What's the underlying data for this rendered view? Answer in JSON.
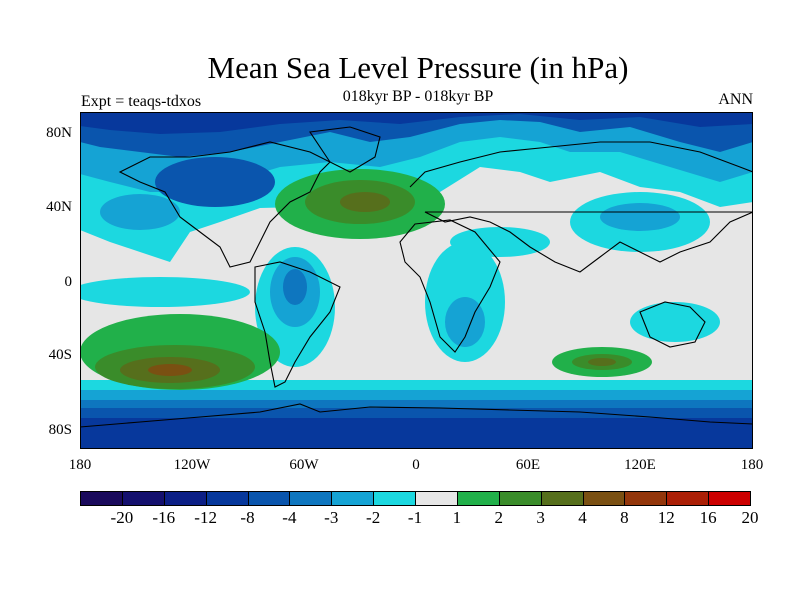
{
  "title": "Mean Sea Level Pressure (in hPa)",
  "subtitle": "018kyr BP - 018kyr BP",
  "expt_label": "Expt = teaqs-tdxos",
  "season": "ANN",
  "y_ticks": [
    "80N",
    "40N",
    "0",
    "40S",
    "80S"
  ],
  "x_ticks": [
    "180",
    "120W",
    "60W",
    "0",
    "60E",
    "120E",
    "180"
  ],
  "colorbar": {
    "labels": [
      "-20",
      "-16",
      "-12",
      "-8",
      "-4",
      "-3",
      "-2",
      "-1",
      "1",
      "2",
      "3",
      "4",
      "8",
      "12",
      "16",
      "20"
    ],
    "colors": [
      "#1a0a5c",
      "#14106e",
      "#0c1f86",
      "#07389c",
      "#0a55ad",
      "#0e76bf",
      "#15a3d4",
      "#1cd8e0",
      "#e6e6e6",
      "#21b04a",
      "#3a8c2a",
      "#566f1c",
      "#7a5012",
      "#93360b",
      "#ab1f06",
      "#cc0000"
    ]
  },
  "map_colors": {
    "neutral": "#e6e6e6",
    "cyan": "#1cd8e0",
    "light_blue": "#15a3d4",
    "mid_blue": "#0e76bf",
    "blue": "#0a55ad",
    "dark_blue": "#07389c",
    "green": "#21b04a",
    "dark_green": "#3a8c2a",
    "olive": "#566f1c",
    "brown": "#7a5012"
  }
}
